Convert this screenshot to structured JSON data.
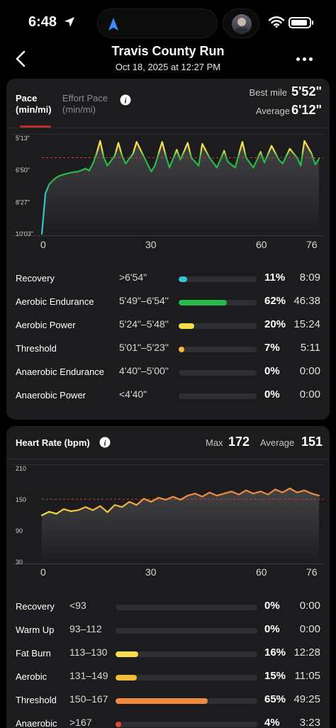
{
  "status": {
    "time": "6:48"
  },
  "header": {
    "title": "Travis County Run",
    "subtitle": "Oct 18, 2025 at 12:27 PM"
  },
  "pace_card": {
    "tab_pace_line1": "Pace",
    "tab_pace_line2": "(min/mi)",
    "tab_effort_line1": "Effort Pace",
    "tab_effort_line2": "(min/mi)",
    "best_label": "Best mile",
    "best_value": "5'52\"",
    "avg_label": "Average",
    "avg_value": "6'12\"",
    "zones": [
      {
        "name": "Recovery",
        "range": ">6'54\"",
        "pct": "11%",
        "time": "8:09",
        "fraction": 0.11,
        "color": "#37c5cf"
      },
      {
        "name": "Aerobic Endurance",
        "range": "5'49\"–6'54\"",
        "pct": "62%",
        "time": "46:38",
        "fraction": 0.62,
        "color": "#2bb84a"
      },
      {
        "name": "Aerobic Power",
        "range": "5'24\"–5'48\"",
        "pct": "20%",
        "time": "15:24",
        "fraction": 0.2,
        "color": "#f3e04a"
      },
      {
        "name": "Threshold",
        "range": "5'01\"–5'23\"",
        "pct": "7%",
        "time": "5:11",
        "fraction": 0.07,
        "color": "#f2bb3a"
      },
      {
        "name": "Anaerobic Endurance",
        "range": "4'40\"–5'00\"",
        "pct": "0%",
        "time": "0:00",
        "fraction": 0,
        "color": "#f08a3c"
      },
      {
        "name": "Anaerobic Power",
        "range": "<4'40\"",
        "pct": "0%",
        "time": "0:00",
        "fraction": 0,
        "color": "#e0463a"
      }
    ]
  },
  "chart_data": [
    {
      "type": "line",
      "y_tick_labels": [
        "5'13\"",
        "6'50\"",
        "8'27\"",
        "10'03\""
      ],
      "x_tick_labels": [
        "0",
        "30",
        "60",
        "76"
      ],
      "x": [
        0,
        1,
        2,
        3,
        4,
        5,
        6,
        8,
        10,
        12,
        13,
        14,
        15,
        16,
        17,
        18,
        20,
        21,
        22,
        23,
        25,
        26,
        28,
        30,
        31,
        33,
        34,
        35,
        37,
        38,
        40,
        41,
        43,
        44,
        46,
        48,
        50,
        51,
        53,
        55,
        56,
        58,
        60,
        61,
        63,
        65,
        66,
        68,
        70,
        71,
        72,
        74,
        75,
        76
      ],
      "y_minutes": [
        10.05,
        8.0,
        7.55,
        7.35,
        7.2,
        7.1,
        7.05,
        6.95,
        6.9,
        6.75,
        6.85,
        6.5,
        6.0,
        5.35,
        6.2,
        6.6,
        6.1,
        5.45,
        6.1,
        6.5,
        6.0,
        5.4,
        6.15,
        6.9,
        6.6,
        5.4,
        6.1,
        6.7,
        5.8,
        6.3,
        5.45,
        6.2,
        6.6,
        5.5,
        6.2,
        6.7,
        5.85,
        6.4,
        6.7,
        5.4,
        6.2,
        6.7,
        5.9,
        6.45,
        5.6,
        6.3,
        6.5,
        5.75,
        6.2,
        6.6,
        5.35,
        6.0,
        6.55,
        6.25
      ],
      "average_line_minutes": 6.2
    },
    {
      "type": "line",
      "y_tick_labels": [
        "210",
        "150",
        "90",
        "30"
      ],
      "x_tick_labels": [
        "0",
        "30",
        "60",
        "76"
      ],
      "x": [
        0,
        2,
        4,
        6,
        8,
        10,
        12,
        14,
        16,
        18,
        20,
        22,
        24,
        26,
        28,
        30,
        32,
        34,
        36,
        38,
        40,
        42,
        44,
        46,
        48,
        50,
        52,
        54,
        56,
        58,
        60,
        62,
        64,
        66,
        68,
        70,
        72,
        74,
        76
      ],
      "y": [
        120,
        127,
        123,
        132,
        128,
        130,
        136,
        130,
        138,
        126,
        140,
        136,
        146,
        140,
        152,
        146,
        154,
        150,
        156,
        150,
        158,
        162,
        156,
        164,
        158,
        162,
        166,
        160,
        168,
        162,
        166,
        160,
        170,
        164,
        172,
        164,
        168,
        162,
        158
      ],
      "average_line": 151
    }
  ],
  "hr_card": {
    "title": "Heart Rate (bpm)",
    "max_label": "Max",
    "max_value": "172",
    "avg_label": "Average",
    "avg_value": "151",
    "zones": [
      {
        "name": "Recovery",
        "range": "<93",
        "pct": "0%",
        "time": "0:00",
        "fraction": 0,
        "color": "#37c5cf"
      },
      {
        "name": "Warm Up",
        "range": "93–112",
        "pct": "0%",
        "time": "0:00",
        "fraction": 0,
        "color": "#2bb84a"
      },
      {
        "name": "Fat Burn",
        "range": "113–130",
        "pct": "16%",
        "time": "12:28",
        "fraction": 0.16,
        "color": "#f3e04a"
      },
      {
        "name": "Aerobic",
        "range": "131–149",
        "pct": "15%",
        "time": "11:05",
        "fraction": 0.15,
        "color": "#f2bb3a"
      },
      {
        "name": "Threshold",
        "range": "150–167",
        "pct": "65%",
        "time": "49:25",
        "fraction": 0.65,
        "color": "#f08a3c"
      },
      {
        "name": "Anaerobic",
        "range": ">167",
        "pct": "4%",
        "time": "3:23",
        "fraction": 0.04,
        "color": "#e0463a"
      }
    ]
  }
}
